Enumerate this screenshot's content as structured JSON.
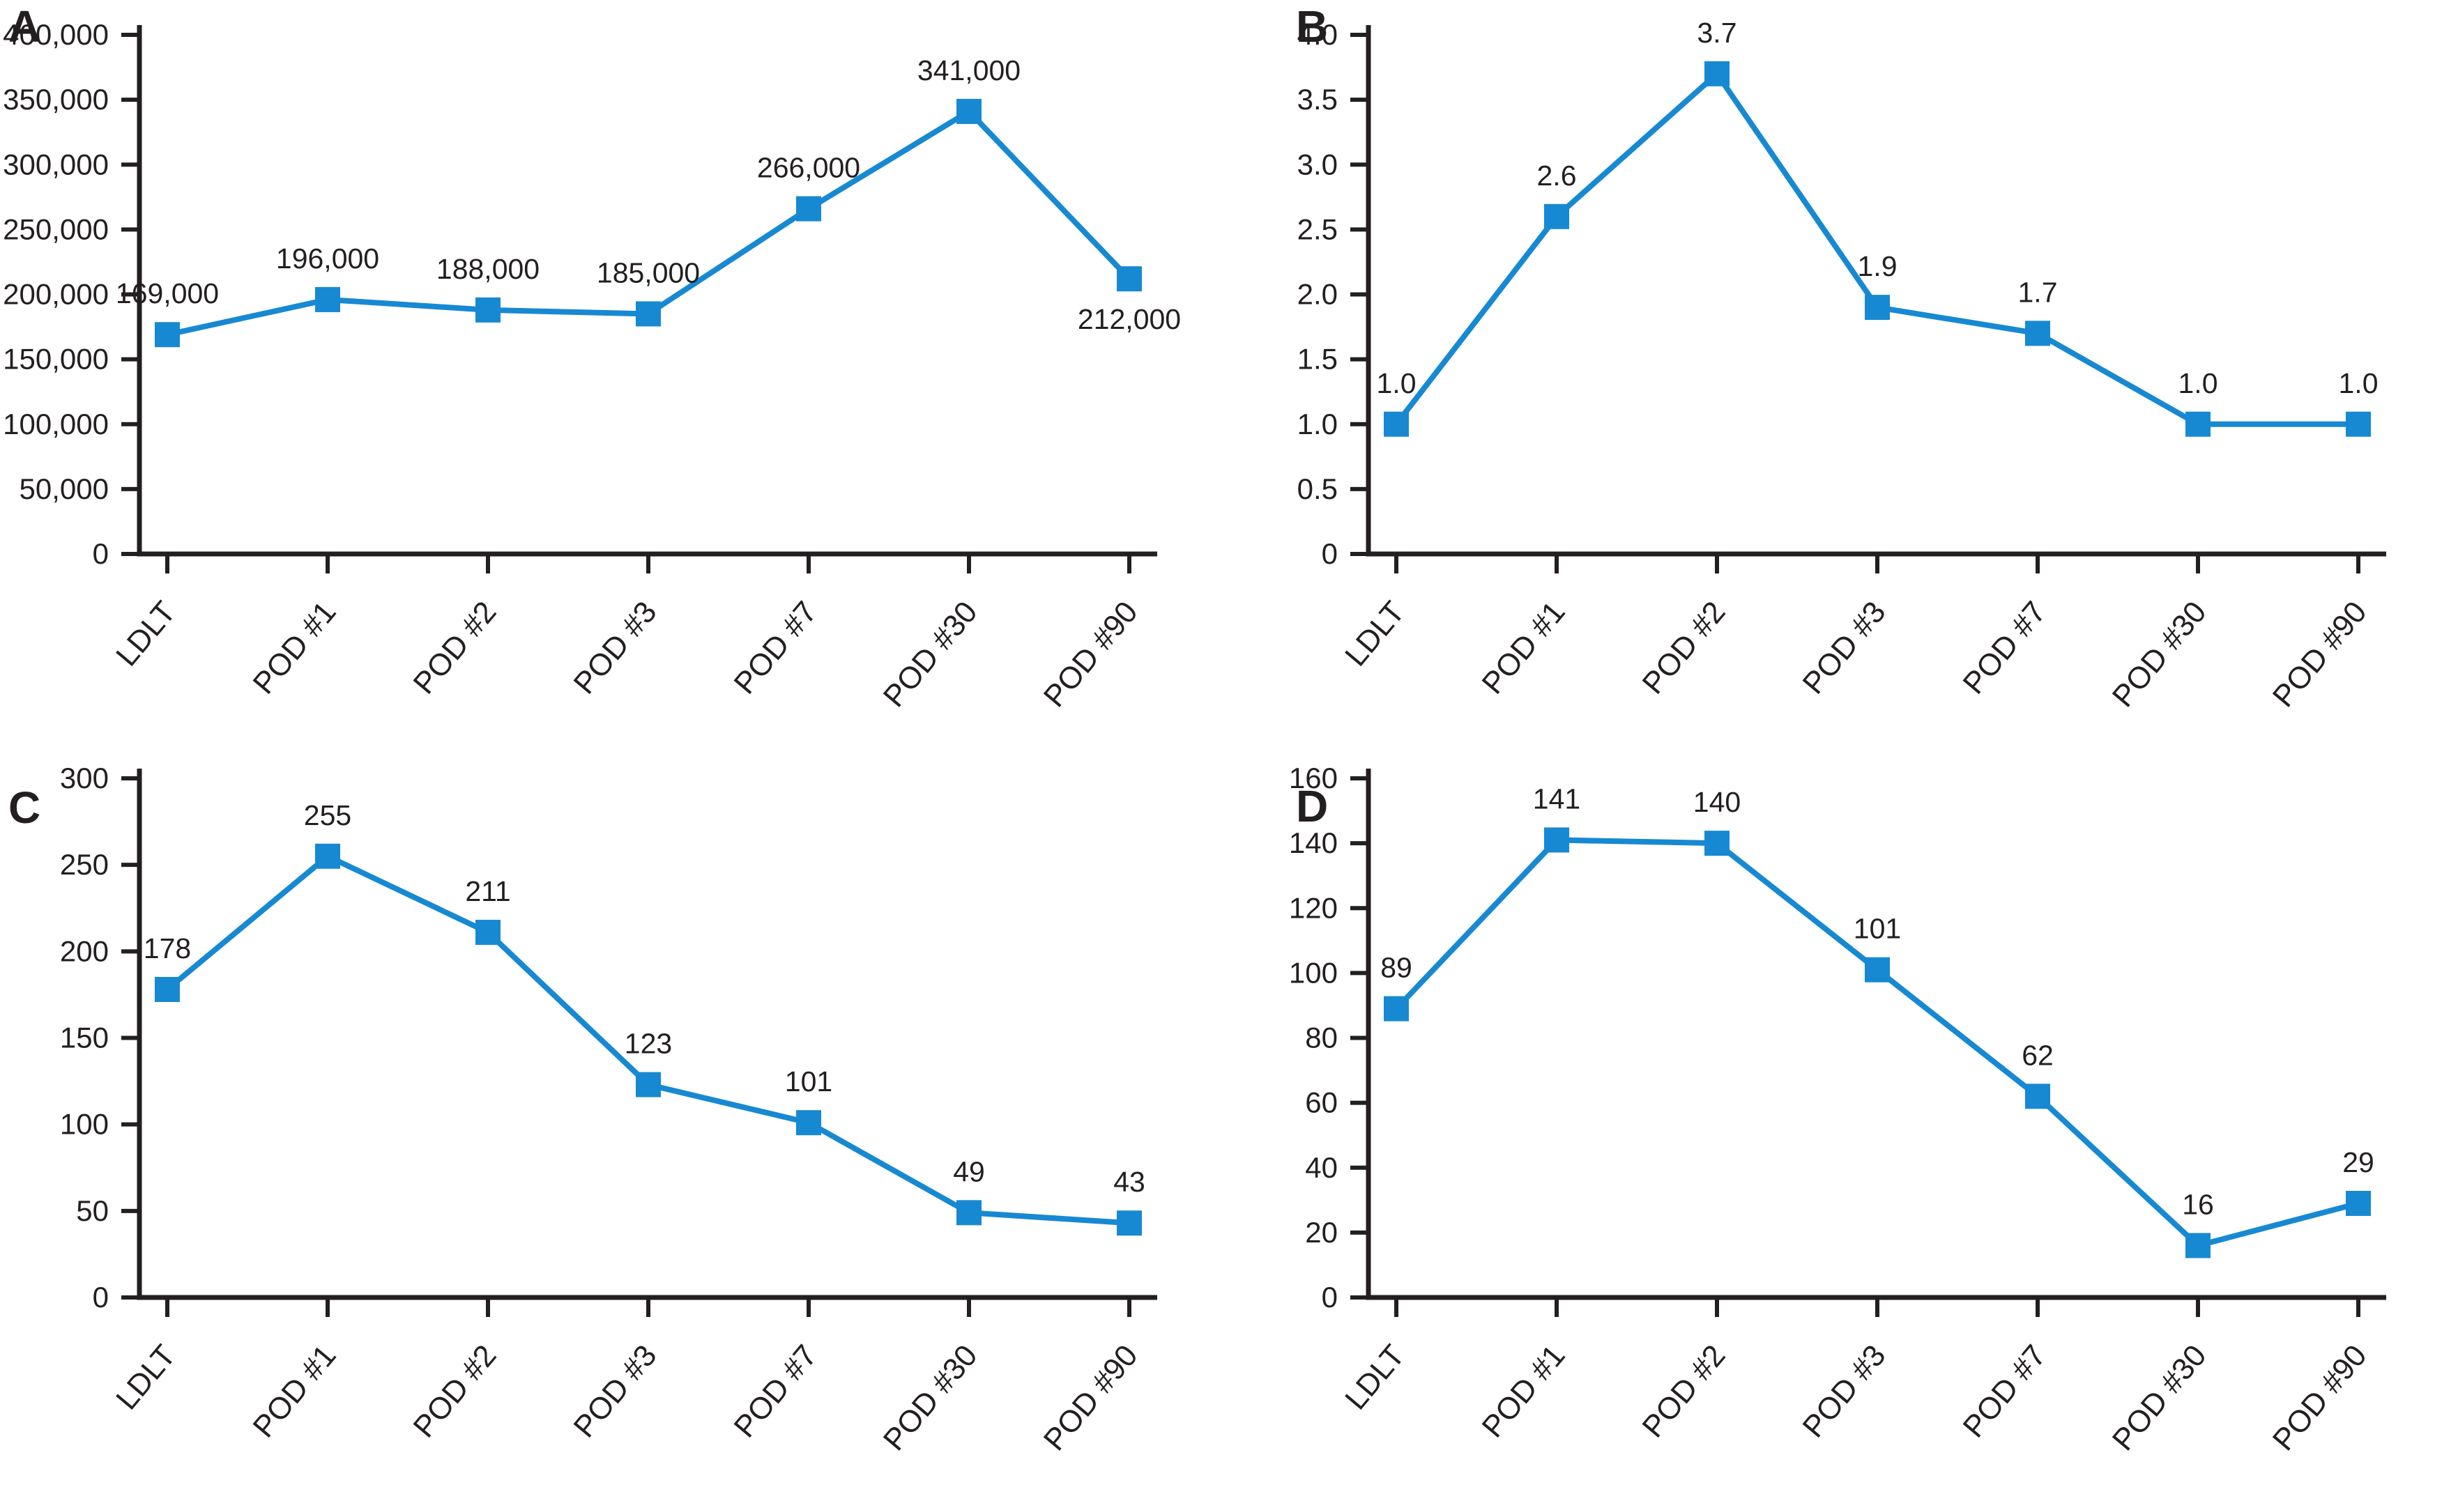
{
  "figure": {
    "accent_color": "#1789D2",
    "axis_color": "#231F20",
    "text_color": "#231F20",
    "background_color": "#FFFFFF",
    "marker_shape": "square",
    "panel_letters": [
      "A",
      "B",
      "C",
      "D"
    ]
  },
  "chart_data": [
    {
      "type": "line",
      "panel": "A",
      "title": "",
      "xlabel": "",
      "ylabel": "",
      "grid": false,
      "legend": false,
      "categories": [
        "LDLT",
        "POD #1",
        "POD #2",
        "POD #3",
        "POD #7",
        "POD #30",
        "POD #90"
      ],
      "values": [
        169000,
        196000,
        188000,
        185000,
        266000,
        341000,
        212000
      ],
      "point_labels": [
        "169,000",
        "196,000",
        "188,000",
        "185,000",
        "266,000",
        "341,000",
        "212,000"
      ],
      "labels_below": [
        6
      ],
      "ylim": [
        0,
        400000
      ],
      "ytick_step": 50000,
      "ytick_labels": [
        "0",
        "50,000",
        "100,000",
        "150,000",
        "200,000",
        "250,000",
        "300,000",
        "350,000",
        "400,000"
      ]
    },
    {
      "type": "line",
      "panel": "B",
      "title": "",
      "xlabel": "",
      "ylabel": "",
      "grid": false,
      "legend": false,
      "categories": [
        "LDLT",
        "POD #1",
        "POD #2",
        "POD #3",
        "POD #7",
        "POD #30",
        "POD #90"
      ],
      "values": [
        1.0,
        2.6,
        3.7,
        1.9,
        1.7,
        1.0,
        1.0
      ],
      "point_labels": [
        "1.0",
        "2.6",
        "3.7",
        "1.9",
        "1.7",
        "1.0",
        "1.0"
      ],
      "labels_below": [],
      "ylim": [
        0,
        4.0
      ],
      "ytick_step": 0.5,
      "ytick_labels": [
        "0",
        "0.5",
        "1.0",
        "1.5",
        "2.0",
        "2.5",
        "3.0",
        "3.5",
        "4.0"
      ]
    },
    {
      "type": "line",
      "panel": "C",
      "title": "",
      "xlabel": "",
      "ylabel": "",
      "grid": false,
      "legend": false,
      "categories": [
        "LDLT",
        "POD #1",
        "POD #2",
        "POD #3",
        "POD #7",
        "POD #30",
        "POD #90"
      ],
      "values": [
        178,
        255,
        211,
        123,
        101,
        49,
        43
      ],
      "point_labels": [
        "178",
        "255",
        "211",
        "123",
        "101",
        "49",
        "43"
      ],
      "labels_below": [],
      "ylim": [
        0,
        300
      ],
      "ytick_step": 50,
      "ytick_labels": [
        "0",
        "50",
        "100",
        "150",
        "200",
        "250",
        "300"
      ]
    },
    {
      "type": "line",
      "panel": "D",
      "title": "",
      "xlabel": "",
      "ylabel": "",
      "grid": false,
      "legend": false,
      "categories": [
        "LDLT",
        "POD #1",
        "POD #2",
        "POD #3",
        "POD #7",
        "POD #30",
        "POD #90"
      ],
      "values": [
        89,
        141,
        140,
        101,
        62,
        16,
        29
      ],
      "point_labels": [
        "89",
        "141",
        "140",
        "101",
        "62",
        "16",
        "29"
      ],
      "labels_below": [],
      "ylim": [
        0,
        160
      ],
      "ytick_step": 20,
      "ytick_labels": [
        "0",
        "20",
        "40",
        "60",
        "80",
        "100",
        "120",
        "140",
        "160"
      ]
    }
  ]
}
